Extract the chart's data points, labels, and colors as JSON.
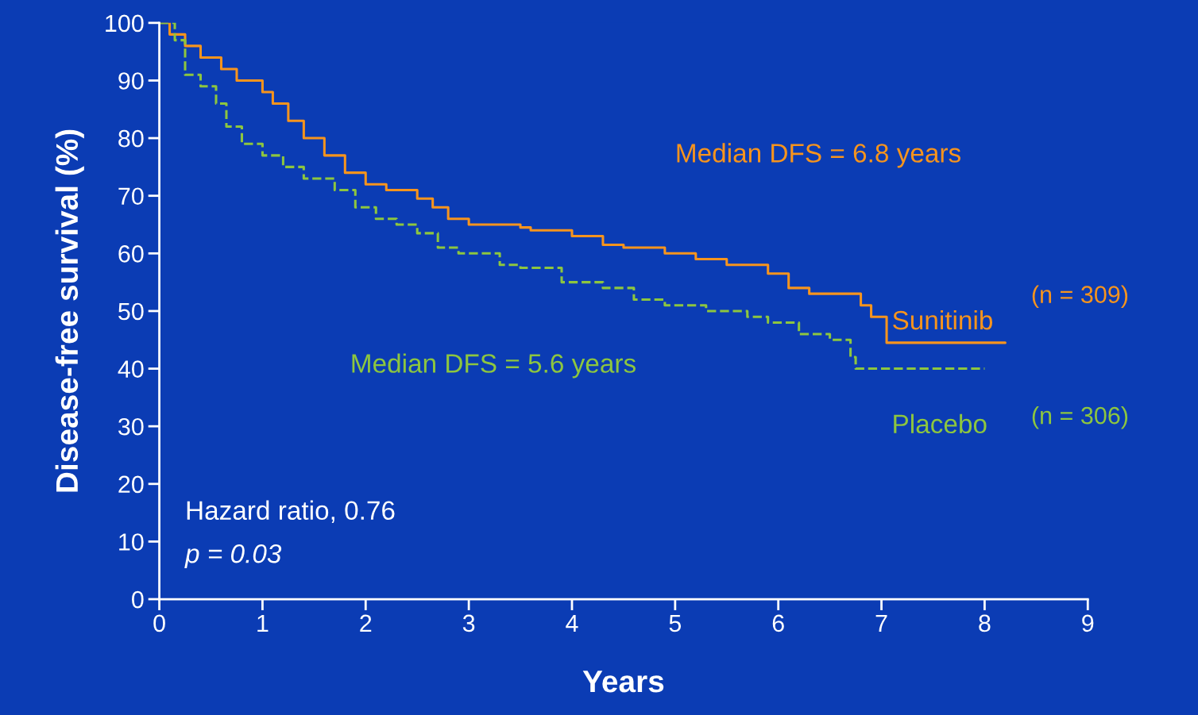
{
  "chart_data": {
    "type": "step",
    "xlabel": "Years",
    "ylabel": "Disease-free survival (%)",
    "xlim": [
      0,
      9
    ],
    "ylim": [
      0,
      100
    ],
    "xticks": [
      0,
      1,
      2,
      3,
      4,
      5,
      6,
      7,
      8,
      9
    ],
    "yticks": [
      0,
      10,
      20,
      30,
      40,
      50,
      60,
      70,
      80,
      90,
      100
    ],
    "grid": false,
    "series": [
      {
        "name": "Sunitinib",
        "color": "#f7941d",
        "line_style": "solid",
        "x": [
          0,
          0.1,
          0.25,
          0.4,
          0.6,
          0.75,
          1.0,
          1.1,
          1.25,
          1.4,
          1.6,
          1.8,
          2.0,
          2.2,
          2.5,
          2.65,
          2.8,
          3.0,
          3.5,
          3.6,
          4.0,
          4.3,
          4.5,
          4.9,
          5.2,
          5.5,
          5.9,
          6.1,
          6.3,
          6.8,
          6.9,
          7.05,
          8.2
        ],
        "values": [
          100,
          98,
          96,
          94,
          92,
          90,
          88,
          86,
          83,
          80,
          77,
          74,
          72,
          71,
          69.5,
          68,
          66,
          65,
          64.5,
          64,
          63,
          61.5,
          61,
          60,
          59,
          58,
          56.5,
          54,
          53,
          51,
          49,
          44.5,
          44.5
        ]
      },
      {
        "name": "Placebo",
        "color": "#8dc63f",
        "line_style": "dashed",
        "x": [
          0,
          0.15,
          0.25,
          0.4,
          0.55,
          0.65,
          0.8,
          1.0,
          1.2,
          1.4,
          1.7,
          1.9,
          2.1,
          2.3,
          2.5,
          2.7,
          2.9,
          3.3,
          3.5,
          3.9,
          4.3,
          4.6,
          4.9,
          5.3,
          5.7,
          5.9,
          6.2,
          6.5,
          6.7,
          6.75,
          8.0
        ],
        "values": [
          100,
          97,
          91,
          89,
          86,
          82,
          79,
          77,
          75,
          73,
          71,
          68,
          66,
          65,
          63.5,
          61,
          60,
          58,
          57.5,
          55,
          54,
          52,
          51,
          50,
          49,
          48,
          46,
          45,
          42,
          40,
          40
        ]
      }
    ],
    "annotations": [
      "Median DFS = 6.8 years",
      "(n = 309)",
      "Median DFS = 5.6 years",
      "(n = 306)",
      "Hazard ratio, 0.76",
      "p = 0.03"
    ]
  }
}
